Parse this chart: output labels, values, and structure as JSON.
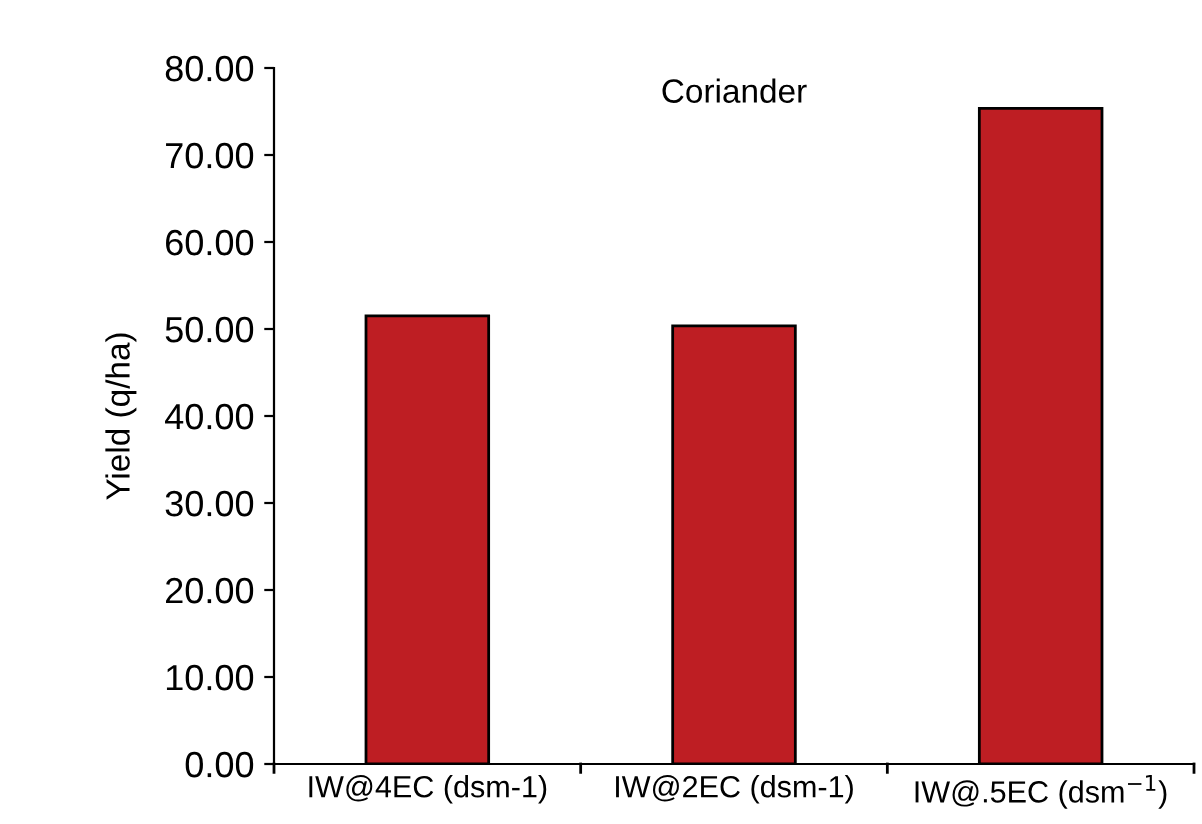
{
  "chart_data": {
    "type": "bar",
    "title": "Coriander",
    "ylabel": "Yield (q/ha)",
    "categories": [
      "IW@4EC (dsm-1)",
      "IW@2EC (dsm-1)",
      "IW@.5EC (dsm$^{−1}$)"
    ],
    "values": [
      51.5,
      50.35,
      75.35
    ],
    "color": "#be1e23",
    "ylim": [
      0,
      80
    ],
    "yticks": [
      {
        "value": 0,
        "label": "0.00"
      },
      {
        "value": 10,
        "label": "10.00"
      },
      {
        "value": 20,
        "label": "20.00"
      },
      {
        "value": 30,
        "label": "30.00"
      },
      {
        "value": 40,
        "label": "40.00"
      },
      {
        "value": 50,
        "label": "50.00"
      },
      {
        "value": 60,
        "label": "60.00"
      },
      {
        "value": 70,
        "label": "70.00"
      },
      {
        "value": 80,
        "label": "80.00"
      }
    ],
    "grid": false,
    "legend": false
  }
}
